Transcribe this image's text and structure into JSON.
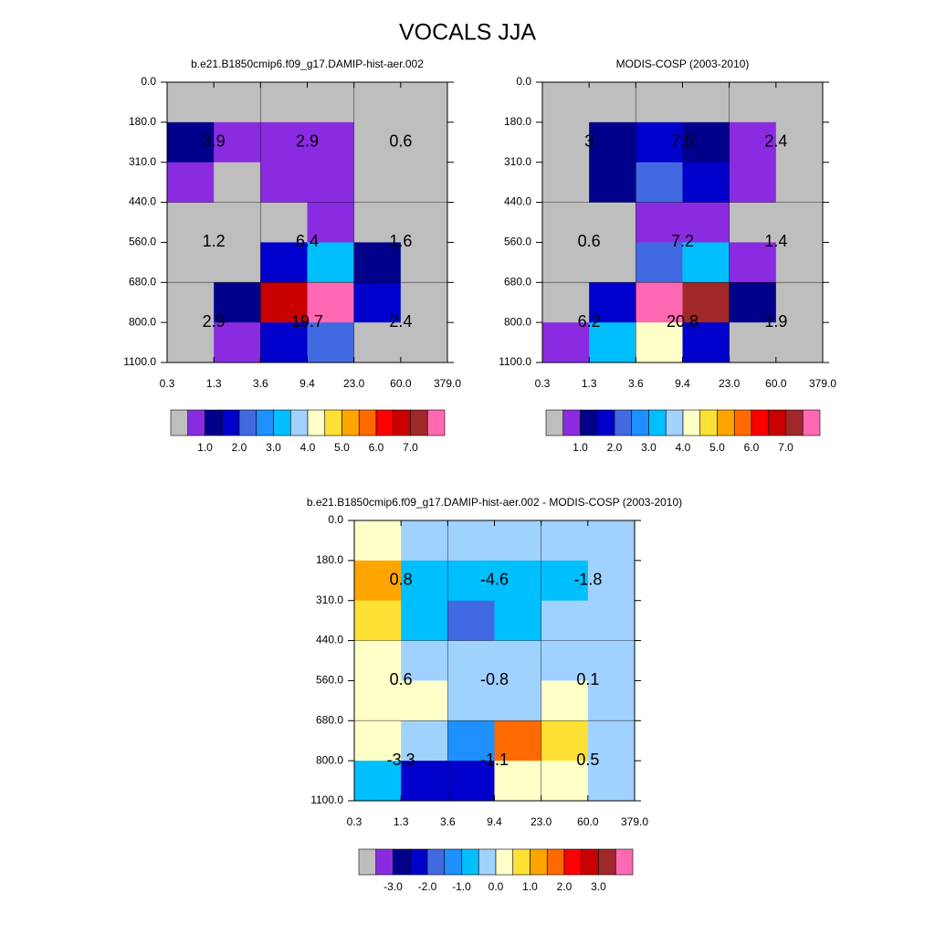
{
  "title": "VOCALS JJA",
  "chart_data": [
    {
      "type": "heatmap",
      "title": "b.e21.B1850cmip6.f09_g17.DAMIP-hist-aer.002",
      "x_edges": [
        "0.3",
        "1.3",
        "3.6",
        "9.4",
        "23.0",
        "60.0",
        "379.0"
      ],
      "y_edges": [
        "0.0",
        "180.0",
        "310.0",
        "440.0",
        "560.0",
        "680.0",
        "800.0",
        "1100.0"
      ],
      "cells": [
        [
          "#bebebe",
          "#bebebe",
          "#bebebe",
          "#bebebe",
          "#bebebe",
          "#bebebe"
        ],
        [
          "#00008b",
          "#8a2be2",
          "#8a2be2",
          "#8a2be2",
          "#bebebe",
          "#bebebe"
        ],
        [
          "#8a2be2",
          "#bebebe",
          "#8a2be2",
          "#8a2be2",
          "#bebebe",
          "#bebebe"
        ],
        [
          "#bebebe",
          "#bebebe",
          "#bebebe",
          "#8a2be2",
          "#bebebe",
          "#bebebe"
        ],
        [
          "#bebebe",
          "#bebebe",
          "#0000cd",
          "#00bfff",
          "#00008b",
          "#bebebe"
        ],
        [
          "#bebebe",
          "#00008b",
          "#c80000",
          "#ff69b4",
          "#0000cd",
          "#bebebe"
        ],
        [
          "#bebebe",
          "#8a2be2",
          "#0000cd",
          "#4169e1",
          "#bebebe",
          "#bebebe"
        ]
      ],
      "annotations": [
        [
          3.9,
          2.9,
          0.6
        ],
        [
          1.2,
          6.4,
          1.6
        ],
        [
          2.9,
          19.7,
          2.4
        ]
      ],
      "colorbar": {
        "colors": [
          "#bebebe",
          "#8a2be2",
          "#00008b",
          "#0000cd",
          "#4169e1",
          "#1e90ff",
          "#00bfff",
          "#a0d2ff",
          "#ffffc8",
          "#ffe135",
          "#ffa500",
          "#ff6a00",
          "#ff0000",
          "#c80000",
          "#a02828",
          "#ff69b4"
        ],
        "labels": [
          "1.0",
          "2.0",
          "3.0",
          "4.0",
          "5.0",
          "6.0",
          "7.0"
        ]
      }
    },
    {
      "type": "heatmap",
      "title": "MODIS-COSP (2003-2010)",
      "x_edges": [
        "0.3",
        "1.3",
        "3.6",
        "9.4",
        "23.0",
        "60.0",
        "379.0"
      ],
      "y_edges": [
        "0.0",
        "180.0",
        "310.0",
        "440.0",
        "560.0",
        "680.0",
        "800.0",
        "1100.0"
      ],
      "cells": [
        [
          "#bebebe",
          "#bebebe",
          "#bebebe",
          "#bebebe",
          "#bebebe",
          "#bebebe"
        ],
        [
          "#bebebe",
          "#00008b",
          "#0000cd",
          "#00008b",
          "#8a2be2",
          "#bebebe"
        ],
        [
          "#bebebe",
          "#00008b",
          "#4169e1",
          "#0000cd",
          "#8a2be2",
          "#bebebe"
        ],
        [
          "#bebebe",
          "#bebebe",
          "#8a2be2",
          "#8a2be2",
          "#bebebe",
          "#bebebe"
        ],
        [
          "#bebebe",
          "#bebebe",
          "#4169e1",
          "#00bfff",
          "#8a2be2",
          "#bebebe"
        ],
        [
          "#bebebe",
          "#0000cd",
          "#ff69b4",
          "#a02828",
          "#00008b",
          "#bebebe"
        ],
        [
          "#8a2be2",
          "#00bfff",
          "#ffffc8",
          "#0000cd",
          "#bebebe",
          "#bebebe"
        ]
      ],
      "annotations": [
        [
          3.0,
          7.5,
          2.4
        ],
        [
          0.6,
          7.2,
          1.4
        ],
        [
          6.2,
          20.8,
          1.9
        ]
      ],
      "colorbar": {
        "colors": [
          "#bebebe",
          "#8a2be2",
          "#00008b",
          "#0000cd",
          "#4169e1",
          "#1e90ff",
          "#00bfff",
          "#a0d2ff",
          "#ffffc8",
          "#ffe135",
          "#ffa500",
          "#ff6a00",
          "#ff0000",
          "#c80000",
          "#a02828",
          "#ff69b4"
        ],
        "labels": [
          "1.0",
          "2.0",
          "3.0",
          "4.0",
          "5.0",
          "6.0",
          "7.0"
        ]
      }
    },
    {
      "type": "heatmap",
      "title": "b.e21.B1850cmip6.f09_g17.DAMIP-hist-aer.002 - MODIS-COSP (2003-2010)",
      "x_edges": [
        "0.3",
        "1.3",
        "3.6",
        "9.4",
        "23.0",
        "60.0",
        "379.0"
      ],
      "y_edges": [
        "0.0",
        "180.0",
        "310.0",
        "440.0",
        "560.0",
        "680.0",
        "800.0",
        "1100.0"
      ],
      "cells": [
        [
          "#ffffc8",
          "#a0d2ff",
          "#a0d2ff",
          "#a0d2ff",
          "#a0d2ff",
          "#a0d2ff"
        ],
        [
          "#ffa500",
          "#00bfff",
          "#00bfff",
          "#00bfff",
          "#00bfff",
          "#a0d2ff"
        ],
        [
          "#ffe135",
          "#00bfff",
          "#4169e1",
          "#00bfff",
          "#a0d2ff",
          "#a0d2ff"
        ],
        [
          "#ffffc8",
          "#a0d2ff",
          "#a0d2ff",
          "#a0d2ff",
          "#a0d2ff",
          "#a0d2ff"
        ],
        [
          "#ffffc8",
          "#ffffc8",
          "#a0d2ff",
          "#a0d2ff",
          "#ffffc8",
          "#a0d2ff"
        ],
        [
          "#ffffc8",
          "#a0d2ff",
          "#1e90ff",
          "#ff6a00",
          "#ffe135",
          "#a0d2ff"
        ],
        [
          "#00bfff",
          "#0000cd",
          "#0000cd",
          "#ffffc8",
          "#ffffc8",
          "#a0d2ff"
        ]
      ],
      "annotations": [
        [
          0.8,
          -4.6,
          -1.8
        ],
        [
          0.6,
          -0.8,
          0.1
        ],
        [
          -3.3,
          -1.1,
          0.5
        ]
      ],
      "colorbar": {
        "colors": [
          "#bebebe",
          "#8a2be2",
          "#00008b",
          "#0000cd",
          "#4169e1",
          "#1e90ff",
          "#00bfff",
          "#a0d2ff",
          "#ffffc8",
          "#ffe135",
          "#ffa500",
          "#ff6a00",
          "#ff0000",
          "#c80000",
          "#a02828",
          "#ff69b4"
        ],
        "labels": [
          "-3.0",
          "-2.0",
          "-1.0",
          "0.0",
          "1.0",
          "2.0",
          "3.0"
        ]
      }
    }
  ]
}
